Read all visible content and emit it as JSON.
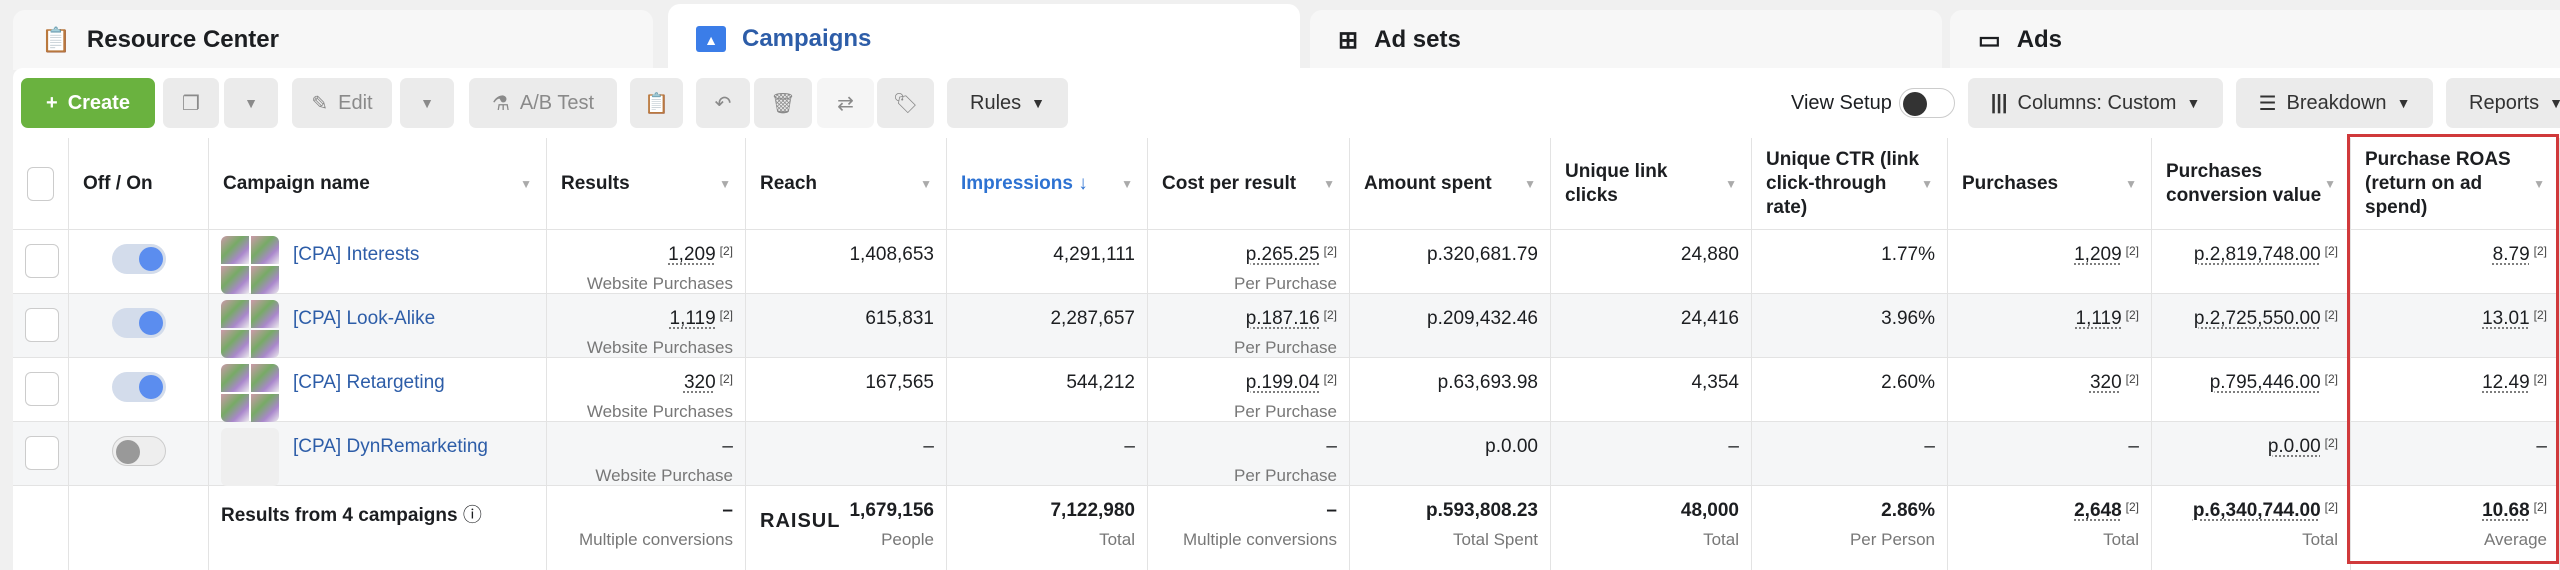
{
  "tabs": [
    {
      "label": "Resource Center",
      "icon": "clipboard-icon"
    },
    {
      "label": "Campaigns",
      "icon": "folder-icon",
      "active": true
    },
    {
      "label": "Ad sets",
      "icon": "grid-icon"
    },
    {
      "label": "Ads",
      "icon": "window-icon"
    }
  ],
  "toolbar": {
    "create": "Create",
    "edit": "Edit",
    "ab_test": "A/B Test",
    "rules": "Rules",
    "view_setup": "View Setup",
    "view_setup_on": false,
    "columns": "Columns: Custom",
    "breakdown": "Breakdown",
    "reports": "Reports"
  },
  "columns": [
    "Off / On",
    "Campaign name",
    "Results",
    "Reach",
    "Impressions ↓",
    "Cost per result",
    "Amount spent",
    "Unique link clicks",
    "Unique CTR (link click-through rate)",
    "Purchases",
    "Purchases conversion value",
    "Purchase ROAS (return on ad spend)"
  ],
  "sup": "[2]",
  "rows": [
    {
      "on": true,
      "name": "[CPA] Interests",
      "results": "1,209",
      "results_sub": "Website Purchases",
      "reach": "1,408,653",
      "impressions": "4,291,111",
      "cpr": "p.265.25",
      "cpr_sub": "Per Purchase",
      "spent": "p.320,681.79",
      "clicks": "24,880",
      "ctr": "1.77%",
      "purchases": "1,209",
      "value": "p.2,819,748.00",
      "roas": "8.79"
    },
    {
      "on": true,
      "name": "[CPA] Look-Alike",
      "results": "1,119",
      "results_sub": "Website Purchases",
      "reach": "615,831",
      "impressions": "2,287,657",
      "cpr": "p.187.16",
      "cpr_sub": "Per Purchase",
      "spent": "p.209,432.46",
      "clicks": "24,416",
      "ctr": "3.96%",
      "purchases": "1,119",
      "value": "p.2,725,550.00",
      "roas": "13.01"
    },
    {
      "on": true,
      "name": "[CPA] Retargeting",
      "results": "320",
      "results_sub": "Website Purchases",
      "reach": "167,565",
      "impressions": "544,212",
      "cpr": "p.199.04",
      "cpr_sub": "Per Purchase",
      "spent": "p.63,693.98",
      "clicks": "4,354",
      "ctr": "2.60%",
      "purchases": "320",
      "value": "p.795,446.00",
      "roas": "12.49"
    },
    {
      "on": false,
      "name": "[CPA] DynRemarketing",
      "results": "–",
      "results_sub": "Website Purchase",
      "reach": "–",
      "impressions": "–",
      "cpr": "–",
      "cpr_sub": "Per Purchase",
      "spent": "p.0.00",
      "clicks": "–",
      "ctr": "–",
      "purchases": "–",
      "value": "p.0.00",
      "roas": "–"
    }
  ],
  "totals": {
    "label": "Results from 4 campaigns",
    "results": "–",
    "results_sub": "Multiple conversions",
    "watermark": "RAISUL",
    "reach": "1,679,156",
    "reach_sub": "People",
    "impressions": "7,122,980",
    "impressions_sub": "Total",
    "cpr": "–",
    "cpr_sub": "Multiple conversions",
    "spent": "p.593,808.23",
    "spent_sub": "Total Spent",
    "clicks": "48,000",
    "clicks_sub": "Total",
    "ctr": "2.86%",
    "ctr_sub": "Per Person",
    "purchases": "2,648",
    "purchases_sub": "Total",
    "value": "p.6,340,744.00",
    "value_sub": "Total",
    "roas": "10.68",
    "roas_sub": "Average"
  },
  "colors": {
    "accent": "#2d5da8",
    "create": "#6ab23f",
    "highlight": "#d0393b"
  }
}
